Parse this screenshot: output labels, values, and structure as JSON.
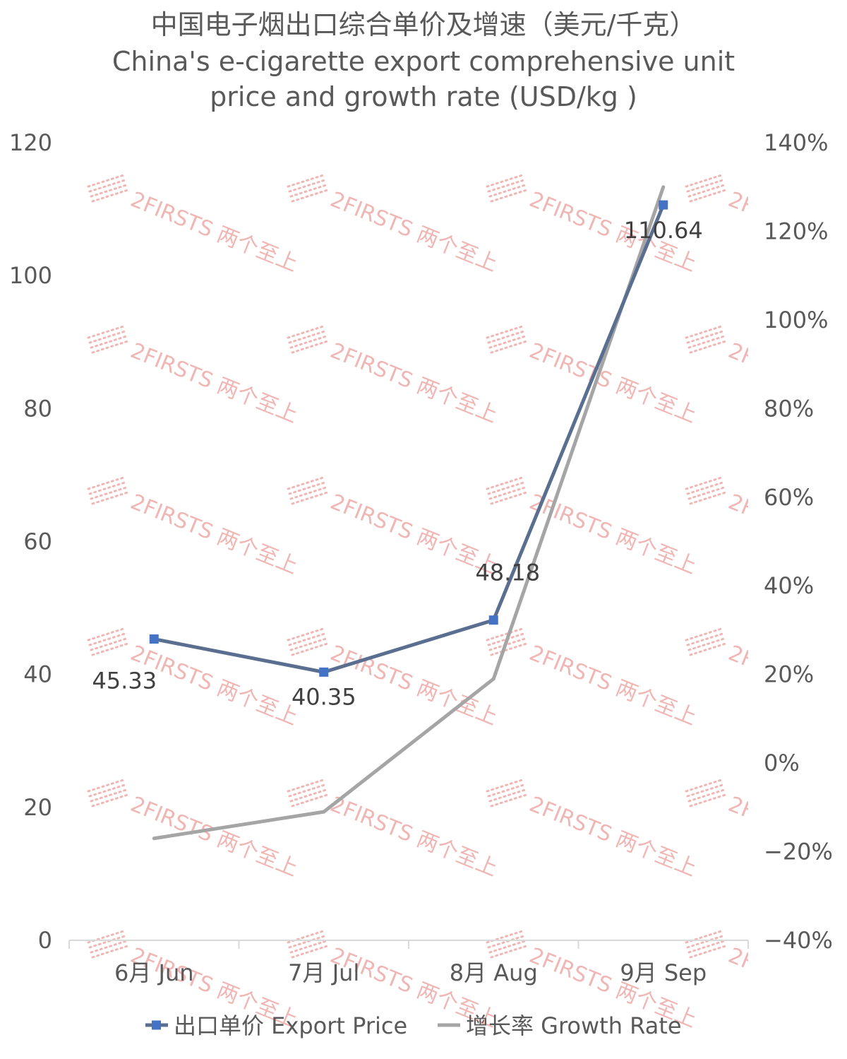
{
  "chart_data": {
    "type": "line",
    "title": "中国电子烟出口综合单价及增速（美元/千克）",
    "subtitle_lines": [
      "China's e-cigarette export comprehensive unit",
      "price and growth rate (USD/kg )"
    ],
    "categories": [
      "6月 Jun",
      "7月 Jul",
      "8月 Aug",
      "9月 Sep"
    ],
    "series": [
      {
        "name": "出口单价 Export Price",
        "axis": "left",
        "color": "#5a6f8f",
        "marker_color": "#4472c4",
        "marker": "square",
        "values": [
          45.33,
          40.35,
          48.18,
          110.64
        ],
        "labels": [
          "45.33",
          "40.35",
          "48.18",
          "110.64"
        ]
      },
      {
        "name": "增长率 Growth Rate",
        "axis": "right",
        "color": "#a5a5a5",
        "marker": "none",
        "values": [
          -17,
          -11,
          19,
          130
        ]
      }
    ],
    "y_left": {
      "range": [
        0,
        120
      ],
      "ticks": [
        0,
        20,
        40,
        60,
        80,
        100,
        120
      ],
      "tick_labels": [
        "0",
        "20",
        "40",
        "60",
        "80",
        "100",
        "120"
      ]
    },
    "y_right": {
      "range": [
        -40,
        140
      ],
      "ticks": [
        -40,
        -20,
        0,
        20,
        40,
        60,
        80,
        100,
        120,
        140
      ],
      "tick_labels": [
        "−40%",
        "−20%",
        "0%",
        "20%",
        "40%",
        "60%",
        "80%",
        "100%",
        "120%",
        "140%"
      ]
    },
    "grid": false,
    "legend_position": "bottom",
    "watermark": "2FIRSTS 两个至上"
  }
}
